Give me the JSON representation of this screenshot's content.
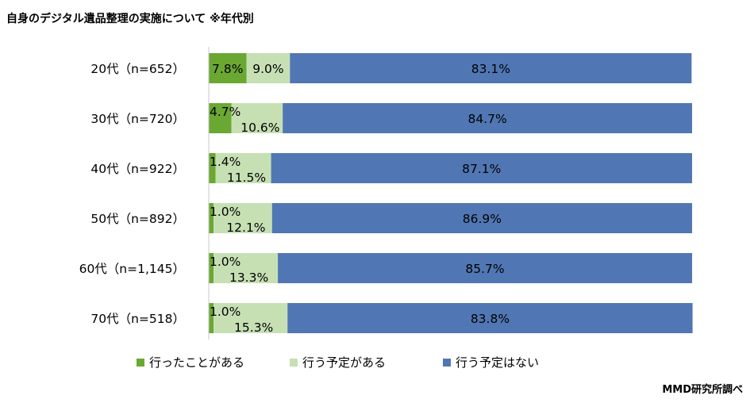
{
  "title": "自身のデジタル遺品整理の実施について ※年代別",
  "source": "MMD研究所調べ",
  "chart_data": {
    "type": "bar",
    "orientation": "horizontal",
    "stacked": "percent",
    "categories": [
      "20代（n=652）",
      "30代（n=720）",
      "40代（n=922）",
      "50代（n=892）",
      "60代（n=1,145）",
      "70代（n=518）"
    ],
    "series": [
      {
        "name": "行ったことがある",
        "color": "#6aa832",
        "values": [
          7.8,
          4.7,
          1.4,
          1.0,
          1.0,
          1.0
        ],
        "labels": [
          "7.8%",
          "4.7%",
          "1.4%",
          "1.0%",
          "1.0%",
          "1.0%"
        ]
      },
      {
        "name": "行う予定がある",
        "color": "#c6e0b4",
        "values": [
          9.0,
          10.6,
          11.5,
          12.1,
          13.3,
          15.3
        ],
        "labels": [
          "9.0%",
          "10.6%",
          "11.5%",
          "12.1%",
          "13.3%",
          "15.3%"
        ]
      },
      {
        "name": "行う予定はない",
        "color": "#5077b3",
        "values": [
          83.1,
          84.7,
          87.1,
          86.9,
          85.7,
          83.8
        ],
        "labels": [
          "83.1%",
          "84.7%",
          "87.1%",
          "86.9%",
          "85.7%",
          "83.8%"
        ]
      }
    ],
    "xlim": [
      0,
      100
    ],
    "legend_position": "bottom"
  }
}
